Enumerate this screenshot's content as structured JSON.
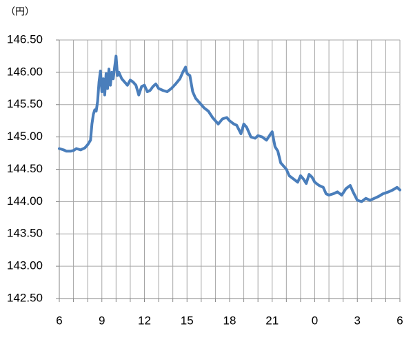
{
  "chart_data": {
    "type": "line",
    "y_axis_label": "（円）",
    "xlim": [
      0,
      24
    ],
    "xticks": [
      {
        "value": 0,
        "label": "6"
      },
      {
        "value": 1,
        "label": null
      },
      {
        "value": 2,
        "label": null
      },
      {
        "value": 3,
        "label": "9"
      },
      {
        "value": 4,
        "label": null
      },
      {
        "value": 5,
        "label": null
      },
      {
        "value": 6,
        "label": "12"
      },
      {
        "value": 7,
        "label": null
      },
      {
        "value": 8,
        "label": null
      },
      {
        "value": 9,
        "label": "15"
      },
      {
        "value": 10,
        "label": null
      },
      {
        "value": 11,
        "label": null
      },
      {
        "value": 12,
        "label": "18"
      },
      {
        "value": 13,
        "label": null
      },
      {
        "value": 14,
        "label": null
      },
      {
        "value": 15,
        "label": "21"
      },
      {
        "value": 16,
        "label": null
      },
      {
        "value": 17,
        "label": null
      },
      {
        "value": 18,
        "label": "0"
      },
      {
        "value": 19,
        "label": null
      },
      {
        "value": 20,
        "label": null
      },
      {
        "value": 21,
        "label": "3"
      },
      {
        "value": 22,
        "label": null
      },
      {
        "value": 23,
        "label": null
      },
      {
        "value": 24,
        "label": "6"
      }
    ],
    "ylim": [
      142.5,
      146.5
    ],
    "yticks": [
      {
        "value": 142.5,
        "label": "142.50"
      },
      {
        "value": 143,
        "label": "143.00"
      },
      {
        "value": 143.5,
        "label": "143.50"
      },
      {
        "value": 144,
        "label": "144.00"
      },
      {
        "value": 144.5,
        "label": "144.50"
      },
      {
        "value": 145,
        "label": "145.00"
      },
      {
        "value": 145.5,
        "label": "145.50"
      },
      {
        "value": 146,
        "label": "146.00"
      },
      {
        "value": 146.5,
        "label": "146.50"
      }
    ],
    "grid": true,
    "series": [
      {
        "color": "#4a7ebb",
        "x": [
          0,
          0.3,
          0.5,
          0.8,
          1.0,
          1.2,
          1.5,
          1.8,
          2.0,
          2.2,
          2.3,
          2.4,
          2.5,
          2.6,
          2.7,
          2.8,
          2.9,
          3.0,
          3.1,
          3.2,
          3.3,
          3.4,
          3.5,
          3.6,
          3.7,
          3.8,
          3.9,
          4.0,
          4.1,
          4.2,
          4.4,
          4.6,
          4.8,
          5.0,
          5.2,
          5.4,
          5.6,
          5.8,
          6.0,
          6.2,
          6.4,
          6.6,
          6.8,
          7.0,
          7.3,
          7.6,
          7.9,
          8.2,
          8.5,
          8.7,
          8.9,
          9.0,
          9.2,
          9.4,
          9.6,
          9.8,
          10.0,
          10.2,
          10.5,
          10.8,
          11.0,
          11.2,
          11.5,
          11.8,
          12.0,
          12.3,
          12.5,
          12.8,
          13.0,
          13.2,
          13.5,
          13.8,
          14.0,
          14.3,
          14.6,
          14.9,
          15.0,
          15.2,
          15.4,
          15.6,
          15.8,
          16.0,
          16.2,
          16.5,
          16.8,
          17.0,
          17.2,
          17.4,
          17.6,
          17.8,
          18.0,
          18.3,
          18.6,
          18.8,
          19.0,
          19.3,
          19.6,
          19.9,
          20.2,
          20.5,
          20.7,
          21.0,
          21.3,
          21.6,
          21.9,
          22.2,
          22.5,
          22.8,
          23.2,
          23.5,
          23.8,
          24.0
        ],
        "values": [
          144.82,
          144.8,
          144.78,
          144.78,
          144.79,
          144.82,
          144.8,
          144.83,
          144.88,
          144.95,
          145.2,
          145.35,
          145.42,
          145.4,
          145.55,
          145.85,
          146.02,
          145.7,
          145.9,
          145.65,
          145.98,
          145.75,
          146.05,
          145.8,
          146.0,
          145.9,
          146.08,
          146.25,
          145.95,
          146.0,
          145.9,
          145.85,
          145.8,
          145.88,
          145.85,
          145.8,
          145.65,
          145.78,
          145.8,
          145.7,
          145.72,
          145.78,
          145.82,
          145.75,
          145.72,
          145.7,
          145.75,
          145.82,
          145.9,
          146.0,
          146.08,
          145.98,
          145.95,
          145.7,
          145.6,
          145.55,
          145.5,
          145.45,
          145.4,
          145.3,
          145.25,
          145.2,
          145.28,
          145.3,
          145.25,
          145.2,
          145.18,
          145.05,
          145.2,
          145.15,
          145.0,
          144.98,
          145.02,
          145.0,
          144.95,
          145.05,
          145.08,
          144.85,
          144.78,
          144.6,
          144.55,
          144.5,
          144.4,
          144.35,
          144.3,
          144.4,
          144.35,
          144.28,
          144.42,
          144.38,
          144.3,
          144.25,
          144.22,
          144.12,
          144.1,
          144.12,
          144.15,
          144.1,
          144.2,
          144.25,
          144.15,
          144.02,
          144.0,
          144.05,
          144.02,
          144.05,
          144.08,
          144.12,
          144.15,
          144.18,
          144.22,
          144.18
        ]
      }
    ]
  }
}
